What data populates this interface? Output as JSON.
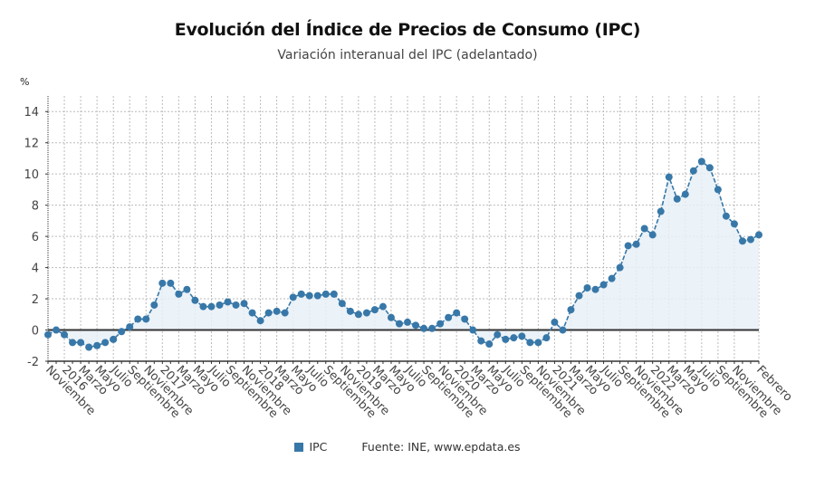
{
  "chart_data": {
    "type": "line",
    "title": "Evolución del Índice de Precios de Consumo (IPC)",
    "subtitle": "Variación interanual del IPC (adelantado)",
    "ylabel": "%",
    "xlabel": "",
    "ylim": [
      -2,
      15
    ],
    "yticks": [
      -2,
      0,
      2,
      4,
      6,
      8,
      10,
      12,
      14
    ],
    "grid": true,
    "legend_position": "bottom-center",
    "x_tick_labels": [
      "Noviembre",
      "2016",
      "Marzo",
      "Mayo",
      "Julio",
      "Septiembre",
      "Noviembre",
      "2017",
      "Marzo",
      "Mayo",
      "Julio",
      "Septiembre",
      "Noviembre",
      "2018",
      "Marzo",
      "Mayo",
      "Julio",
      "Septiembre",
      "Noviembre",
      "2019",
      "Marzo",
      "Mayo",
      "Julio",
      "Septiembre",
      "Noviembre",
      "2020",
      "Marzo",
      "Mayo",
      "Julio",
      "Septiembre",
      "Noviembre",
      "2021",
      "Marzo",
      "Mayo",
      "Julio",
      "Septiembre",
      "Noviembre",
      "2022",
      "Marzo",
      "Mayo",
      "Julio",
      "Septiembre",
      "Noviembre",
      "Febrero"
    ],
    "x_tick_month_index": [
      0,
      2,
      4,
      6,
      8,
      10,
      12,
      14,
      16,
      18,
      20,
      22,
      24,
      26,
      28,
      30,
      32,
      34,
      36,
      38,
      40,
      42,
      44,
      46,
      48,
      50,
      52,
      54,
      56,
      58,
      60,
      62,
      64,
      66,
      68,
      70,
      72,
      74,
      76,
      78,
      80,
      82,
      84,
      87
    ],
    "x_start": "2015-11",
    "x_end": "2023-02",
    "series": [
      {
        "name": "IPC",
        "color": "#3878a8",
        "values": [
          -0.3,
          0.0,
          -0.3,
          -0.8,
          -0.8,
          -1.1,
          -1.0,
          -0.8,
          -0.6,
          -0.1,
          0.2,
          0.7,
          0.7,
          1.6,
          3.0,
          3.0,
          2.3,
          2.6,
          1.9,
          1.5,
          1.5,
          1.6,
          1.8,
          1.6,
          1.7,
          1.1,
          0.6,
          1.1,
          1.2,
          1.1,
          2.1,
          2.3,
          2.2,
          2.2,
          2.3,
          2.3,
          1.7,
          1.2,
          1.0,
          1.1,
          1.3,
          1.5,
          0.8,
          0.4,
          0.5,
          0.3,
          0.1,
          0.1,
          0.4,
          0.8,
          1.1,
          0.7,
          0.0,
          -0.7,
          -0.9,
          -0.3,
          -0.6,
          -0.5,
          -0.4,
          -0.8,
          -0.8,
          -0.5,
          0.5,
          0.0,
          1.3,
          2.2,
          2.7,
          2.6,
          2.9,
          3.3,
          4.0,
          5.4,
          5.5,
          6.5,
          6.1,
          7.6,
          9.8,
          8.4,
          8.7,
          10.2,
          10.8,
          10.4,
          9.0,
          7.3,
          6.8,
          5.7,
          5.8,
          6.1
        ]
      }
    ]
  },
  "legend": {
    "label": "IPC",
    "source": "Fuente: INE, www.epdata.es"
  },
  "colors": {
    "line": "#3878a8",
    "fill": "#e8f0f7",
    "zero_line": "#333333",
    "grid": "#bbbbbb"
  }
}
